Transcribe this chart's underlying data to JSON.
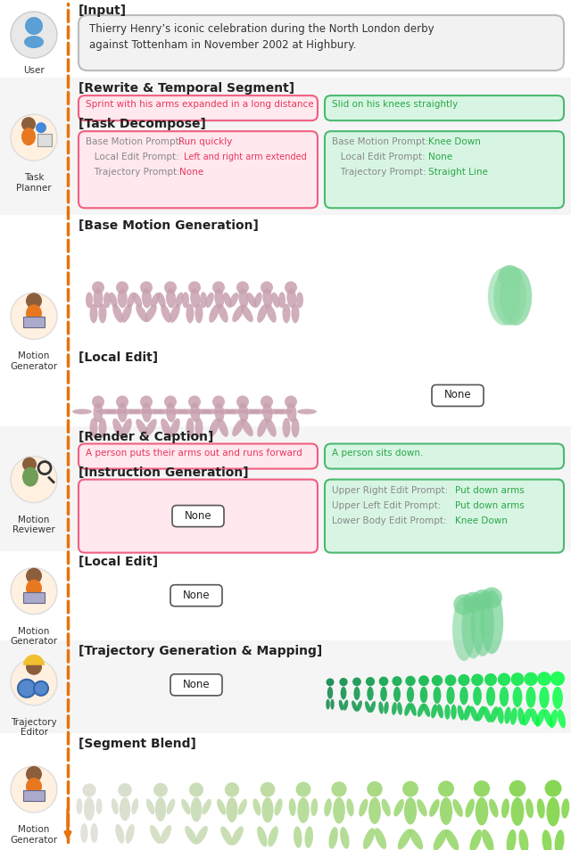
{
  "fig_w": 6.4,
  "fig_h": 9.54,
  "dpi": 100,
  "orange": "#E8720C",
  "pink_bg": "#FFE8EE",
  "pink_border": "#F06080",
  "pink_text": "#E8365D",
  "green_bg": "#D8F5E4",
  "green_border": "#4CB870",
  "green_text": "#28A745",
  "gray_bg": "#F0F0F0",
  "dark": "#222222",
  "mid_gray": "#777777",
  "none_border": "#555555",
  "input_text": "Thierry Henry’s iconic celebration during the North London derby\nagainst Tottenham in November 2002 at Highbury.",
  "seg1_left": "Sprint with his arms expanded in a long distance",
  "seg1_right": "Slid on his knees straightly",
  "td_l1p": "Base Motion Prompt: ",
  "td_l1v": "Run quickly",
  "td_l2p": "   Local Edit Prompt: ",
  "td_l2v": "Left and right arm extended",
  "td_l3p": "   Trajectory Prompt: ",
  "td_l3v": "None",
  "td_r1p": "Base Motion Prompt: ",
  "td_r1v": "Knee Down",
  "td_r2p": "   Local Edit Prompt: ",
  "td_r2v": "None",
  "td_r3p": "   Trajectory Prompt: ",
  "td_r3v": "Straight Line",
  "rc_left": "A person puts their arms out and runs forward",
  "rc_right": "A person sits down.",
  "ig_r1p": "Upper Right Edit Prompt: ",
  "ig_r1v": "Put down arms",
  "ig_r2p": "Upper Left Edit Prompt: ",
  "ig_r2v": "Put down arms",
  "ig_r3p": "Lower Body Edit Prompt: ",
  "ig_r3v": "Knee Down"
}
